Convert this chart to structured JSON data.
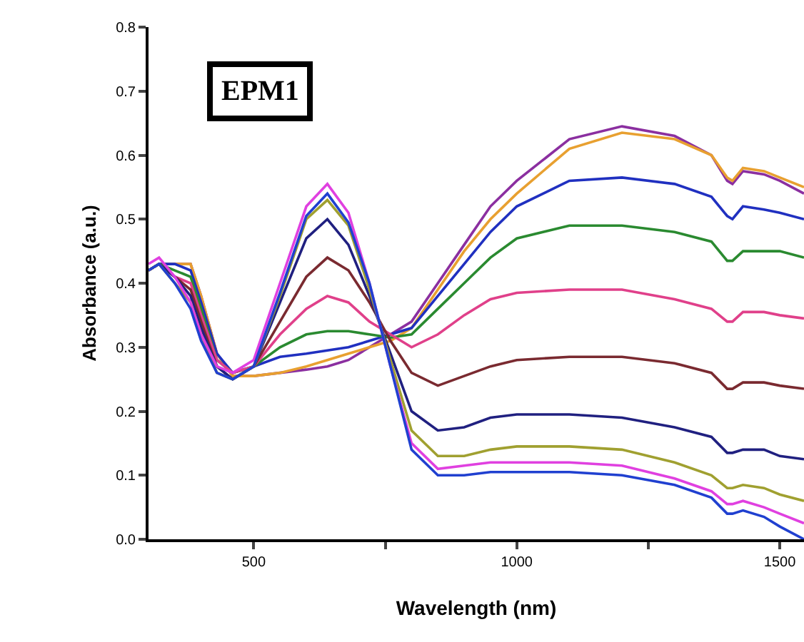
{
  "chart_data": {
    "type": "line",
    "xlabel": "Wavelength (nm)",
    "ylabel": "Absorbance (a.u.)",
    "annotations": [
      "EPM1"
    ],
    "x": [
      300,
      320,
      350,
      380,
      400,
      430,
      460,
      500,
      550,
      600,
      640,
      680,
      720,
      760,
      800,
      850,
      900,
      950,
      1000,
      1100,
      1200,
      1300,
      1370,
      1400,
      1410,
      1430,
      1470,
      1500,
      1546
    ],
    "xlim": [
      300,
      1546
    ],
    "ylim": [
      0,
      0.8
    ],
    "xticks": [
      500,
      {
        "value": 750,
        "label": null
      },
      1000,
      {
        "value": 1250,
        "label": null
      },
      1500
    ],
    "yticks": [
      {
        "value": 0,
        "label": "0.0"
      },
      0.1,
      0.2,
      0.3,
      0.4,
      0.5,
      0.6,
      0.7,
      0.8
    ],
    "grid": false,
    "line_style": "solid",
    "marker": "none",
    "series": [
      {
        "color": "#8b2fa0",
        "values": [
          0.42,
          0.43,
          0.43,
          0.43,
          0.38,
          0.29,
          0.255,
          0.255,
          0.26,
          0.265,
          0.27,
          0.28,
          0.3,
          0.32,
          0.34,
          0.4,
          0.46,
          0.52,
          0.56,
          0.625,
          0.645,
          0.63,
          0.6,
          0.56,
          0.555,
          0.575,
          0.57,
          0.56,
          0.54
        ]
      },
      {
        "color": "#e8a030",
        "values": [
          0.42,
          0.43,
          0.43,
          0.43,
          0.38,
          0.29,
          0.255,
          0.255,
          0.26,
          0.27,
          0.28,
          0.29,
          0.3,
          0.31,
          0.33,
          0.39,
          0.45,
          0.5,
          0.54,
          0.61,
          0.635,
          0.625,
          0.6,
          0.565,
          0.56,
          0.58,
          0.575,
          0.565,
          0.55
        ]
      },
      {
        "color": "#2030c0",
        "values": [
          0.42,
          0.43,
          0.43,
          0.42,
          0.37,
          0.29,
          0.26,
          0.27,
          0.285,
          0.29,
          0.295,
          0.3,
          0.31,
          0.32,
          0.33,
          0.38,
          0.43,
          0.48,
          0.52,
          0.56,
          0.565,
          0.555,
          0.535,
          0.505,
          0.5,
          0.52,
          0.515,
          0.51,
          0.5
        ]
      },
      {
        "color": "#2a8a30",
        "values": [
          0.42,
          0.43,
          0.42,
          0.41,
          0.36,
          0.28,
          0.26,
          0.27,
          0.3,
          0.32,
          0.325,
          0.325,
          0.32,
          0.315,
          0.32,
          0.36,
          0.4,
          0.44,
          0.47,
          0.49,
          0.49,
          0.48,
          0.465,
          0.435,
          0.435,
          0.45,
          0.45,
          0.45,
          0.44
        ]
      },
      {
        "color": "#e0408a",
        "values": [
          0.42,
          0.43,
          0.41,
          0.4,
          0.35,
          0.28,
          0.26,
          0.27,
          0.32,
          0.36,
          0.38,
          0.37,
          0.34,
          0.32,
          0.3,
          0.32,
          0.35,
          0.375,
          0.385,
          0.39,
          0.39,
          0.375,
          0.36,
          0.34,
          0.34,
          0.355,
          0.355,
          0.35,
          0.345
        ]
      },
      {
        "color": "#7a2a30",
        "values": [
          0.42,
          0.43,
          0.41,
          0.39,
          0.34,
          0.27,
          0.25,
          0.27,
          0.34,
          0.41,
          0.44,
          0.42,
          0.37,
          0.31,
          0.26,
          0.24,
          0.255,
          0.27,
          0.28,
          0.285,
          0.285,
          0.275,
          0.26,
          0.235,
          0.235,
          0.245,
          0.245,
          0.24,
          0.235
        ]
      },
      {
        "color": "#202080",
        "values": [
          0.42,
          0.43,
          0.41,
          0.38,
          0.33,
          0.27,
          0.25,
          0.27,
          0.37,
          0.47,
          0.5,
          0.46,
          0.38,
          0.29,
          0.2,
          0.17,
          0.175,
          0.19,
          0.195,
          0.195,
          0.19,
          0.175,
          0.16,
          0.135,
          0.135,
          0.14,
          0.14,
          0.13,
          0.125
        ]
      },
      {
        "color": "#a0a030",
        "values": [
          0.42,
          0.43,
          0.4,
          0.37,
          0.32,
          0.26,
          0.25,
          0.27,
          0.38,
          0.5,
          0.53,
          0.49,
          0.39,
          0.28,
          0.17,
          0.13,
          0.13,
          0.14,
          0.145,
          0.145,
          0.14,
          0.12,
          0.1,
          0.08,
          0.08,
          0.085,
          0.08,
          0.07,
          0.06
        ]
      },
      {
        "color": "#e040e0",
        "values": [
          0.43,
          0.44,
          0.41,
          0.37,
          0.32,
          0.27,
          0.26,
          0.28,
          0.4,
          0.52,
          0.555,
          0.51,
          0.4,
          0.27,
          0.15,
          0.11,
          0.115,
          0.12,
          0.12,
          0.12,
          0.115,
          0.095,
          0.075,
          0.055,
          0.055,
          0.06,
          0.05,
          0.04,
          0.025
        ]
      },
      {
        "color": "#2040d0",
        "values": [
          0.42,
          0.43,
          0.4,
          0.36,
          0.31,
          0.26,
          0.25,
          0.27,
          0.385,
          0.505,
          0.54,
          0.495,
          0.4,
          0.27,
          0.14,
          0.1,
          0.1,
          0.105,
          0.105,
          0.105,
          0.1,
          0.085,
          0.065,
          0.04,
          0.04,
          0.045,
          0.035,
          0.02,
          0
        ]
      }
    ]
  }
}
